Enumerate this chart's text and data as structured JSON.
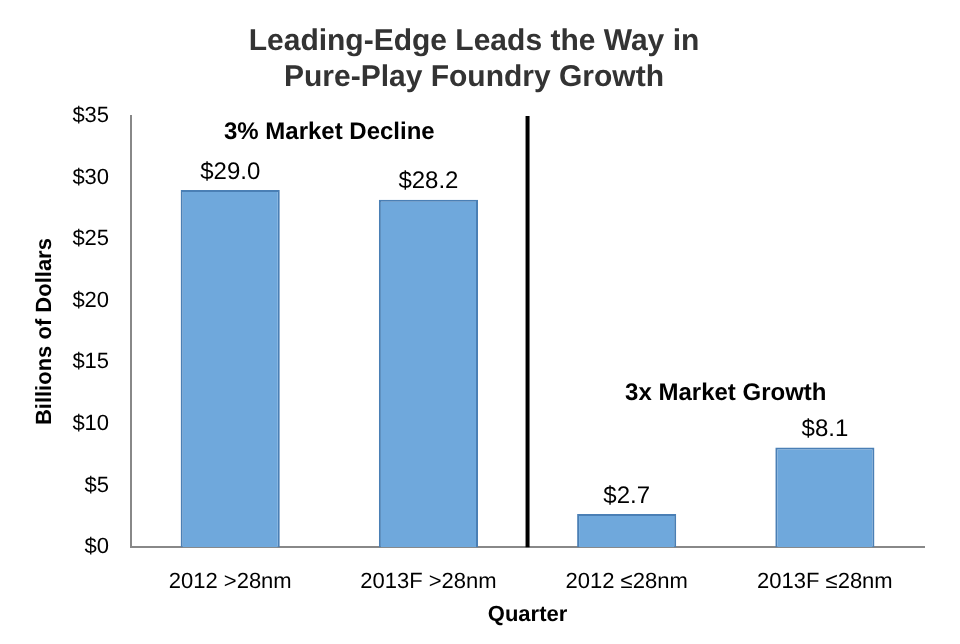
{
  "chart_data": {
    "type": "bar",
    "title": "Leading-Edge Leads the Way in\nPure-Play Foundry Growth",
    "xlabel": "Quarter",
    "ylabel": "Billions of Dollars",
    "categories": [
      "2012 >28nm",
      "2013F >28nm",
      "2012 ≤28nm",
      "2013F ≤28nm"
    ],
    "values": [
      29.0,
      28.2,
      2.7,
      8.1
    ],
    "value_labels": [
      "$29.0",
      "$28.2",
      "$2.7",
      "$8.1"
    ],
    "color": "#6fa8dc",
    "ylim": [
      0,
      35
    ],
    "yticks": [
      {
        "value": 0,
        "label": "$0"
      },
      {
        "value": 5,
        "label": "$5"
      },
      {
        "value": 10,
        "label": "$10"
      },
      {
        "value": 15,
        "label": "$15"
      },
      {
        "value": 20,
        "label": "$20"
      },
      {
        "value": 25,
        "label": "$25"
      },
      {
        "value": 30,
        "label": "$30"
      },
      {
        "value": 35,
        "label": "$35"
      }
    ],
    "grid": false,
    "legend": false,
    "annotations": [
      "3% Market Decline",
      "3x Market Growth"
    ]
  }
}
